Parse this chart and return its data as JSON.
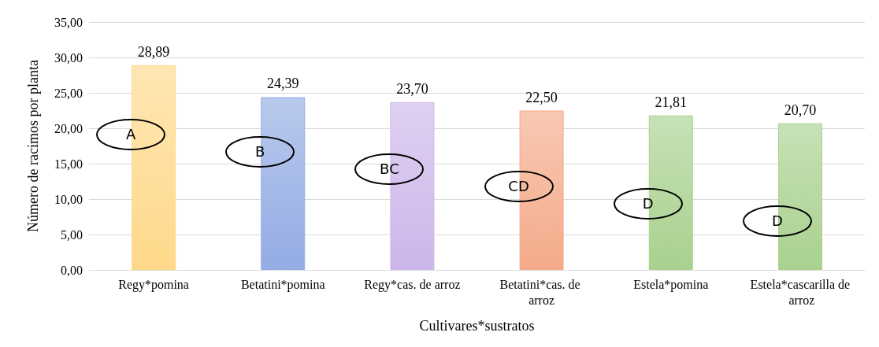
{
  "chart_data": {
    "type": "bar",
    "xlabel": "Cultivares*sustratos",
    "ylabel": "Número de racimos por planta",
    "categories": [
      "Regy*pomina",
      "Betatini*pomina",
      "Regy*cas. de arroz",
      "Betatini*cas. de arroz",
      "Estela*pomina",
      "Estela*cascarilla de arroz"
    ],
    "values": [
      28.89,
      24.39,
      23.7,
      22.5,
      21.81,
      20.7
    ],
    "value_labels": [
      "28,89",
      "24,39",
      "23,70",
      "22,50",
      "21,81",
      "20,70"
    ],
    "colors": [
      "#ffd98a",
      "#94ace4",
      "#cdb6ea",
      "#f4ab8a",
      "#a9d18e",
      "#a9d18e"
    ],
    "ylim": [
      0,
      35
    ],
    "yticks": [
      {
        "value": 0,
        "label": "0,00"
      },
      {
        "value": 5,
        "label": "5,00"
      },
      {
        "value": 10,
        "label": "10,00"
      },
      {
        "value": 15,
        "label": "15,00"
      },
      {
        "value": 20,
        "label": "20,00"
      },
      {
        "value": 25,
        "label": "25,00"
      },
      {
        "value": 30,
        "label": "30,00"
      },
      {
        "value": 35,
        "label": "35,00"
      }
    ],
    "grid": "y",
    "annotations": [
      "A",
      "B",
      "BC",
      "CD",
      "D",
      "D"
    ]
  }
}
